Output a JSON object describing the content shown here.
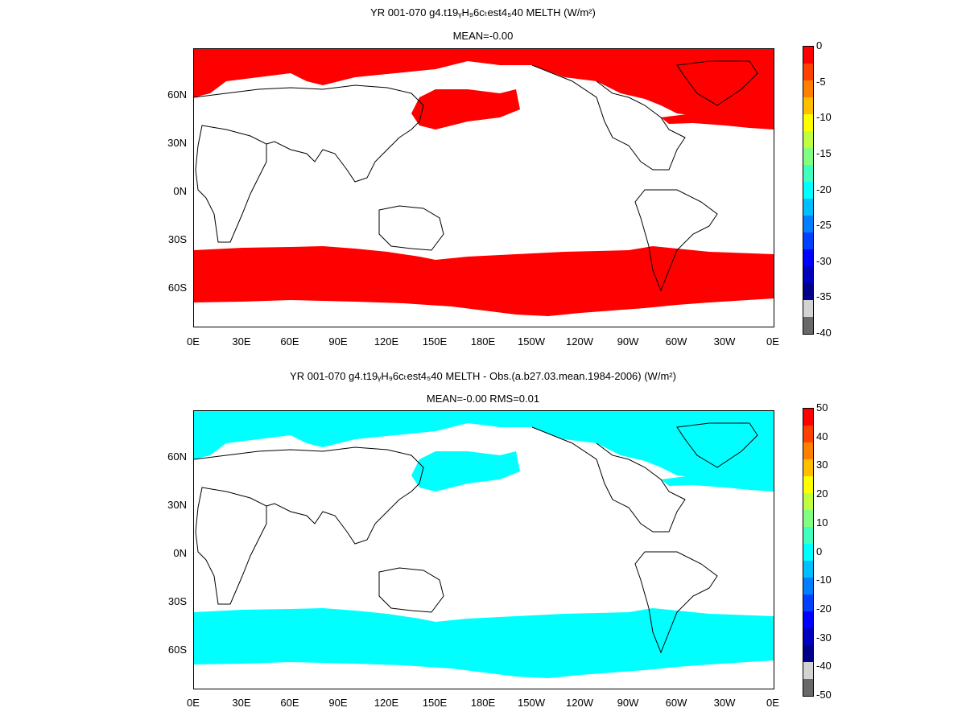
{
  "panels": [
    {
      "title_line1": "YR 001-070 g4.t19ᵧH₉6cₜest4₅40  MELTH (W/m²)",
      "title_line2": "MEAN=-0.00",
      "fill_color": "#ff0000",
      "colorbar_ticks": [
        "0",
        "-5",
        "-10",
        "-15",
        "-20",
        "-25",
        "-30",
        "-35",
        "-40"
      ],
      "colorbar_colors": [
        "#ff0000",
        "#ff4000",
        "#ff7f00",
        "#ffbf00",
        "#ffff00",
        "#c0ff40",
        "#80ff80",
        "#40ffbf",
        "#00ffff",
        "#00bfff",
        "#0080ff",
        "#0040ff",
        "#0000ff",
        "#0000bf",
        "#00008b",
        "#d3d3d3",
        "#696969"
      ]
    },
    {
      "title_line1": "YR 001-070 g4.t19ᵧH₉6cₜest4₅40 MELTH - Obs.(a.b27.03.mean.1984-2006) (W/m²)",
      "title_line2": "MEAN=-0.00 RMS=0.01",
      "fill_color": "#00ffff",
      "colorbar_ticks": [
        "50",
        "40",
        "30",
        "20",
        "10",
        "0",
        "-10",
        "-20",
        "-30",
        "-40",
        "-50"
      ],
      "colorbar_colors": [
        "#ff0000",
        "#ff4000",
        "#ff7f00",
        "#ffbf00",
        "#ffff00",
        "#c0ff40",
        "#80ff80",
        "#40ffbf",
        "#00ffff",
        "#00bfff",
        "#0080ff",
        "#0040ff",
        "#0000ff",
        "#0000bf",
        "#00008b",
        "#d3d3d3",
        "#696969"
      ]
    }
  ],
  "x_ticks": [
    "0E",
    "30E",
    "60E",
    "90E",
    "120E",
    "150E",
    "180E",
    "150W",
    "120W",
    "90W",
    "60W",
    "30W",
    "0E"
  ],
  "y_ticks": [
    "60N",
    "30N",
    "0N",
    "30S",
    "60S"
  ]
}
